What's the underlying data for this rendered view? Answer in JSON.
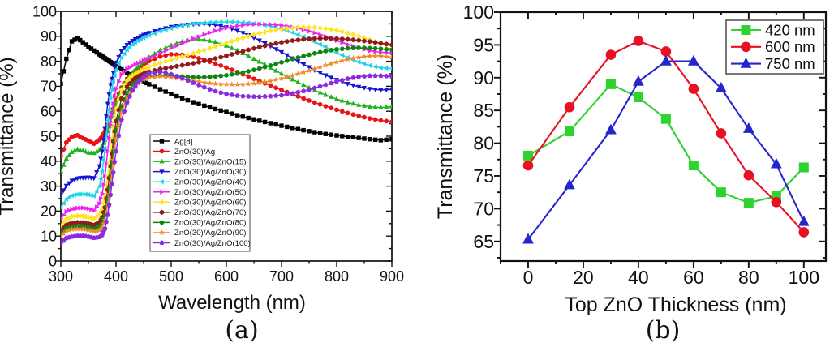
{
  "figure": {
    "background": "#ffffff",
    "text_color": "#111111"
  },
  "chart_data": [
    {
      "id": "a",
      "type": "line",
      "title": "",
      "caption": "(a)",
      "xlabel": "Wavelength (nm)",
      "ylabel": "Transmittance (%)",
      "xlim": [
        300,
        900
      ],
      "ylim": [
        0,
        100
      ],
      "xticks": {
        "major": 100,
        "minor": 50
      },
      "yticks": {
        "major": 10,
        "minor": 5
      },
      "grid": false,
      "legend_position": "inside-lower-center-left",
      "x": [
        300,
        310,
        320,
        330,
        340,
        350,
        360,
        370,
        375,
        380,
        385,
        390,
        395,
        400,
        410,
        420,
        430,
        440,
        450,
        460,
        480,
        500,
        520,
        540,
        560,
        580,
        600,
        620,
        640,
        660,
        680,
        700,
        720,
        740,
        760,
        780,
        800,
        820,
        840,
        860,
        880,
        900
      ],
      "series": [
        {
          "name": "Ag[8]",
          "color": "#000000",
          "marker": "square",
          "values": [
            71,
            81,
            88,
            89.3,
            87.6,
            85.8,
            84.3,
            82.8,
            82,
            81.2,
            80.5,
            79.7,
            79,
            78.2,
            76.8,
            75.4,
            74.2,
            73,
            71.8,
            70.8,
            68.8,
            66.9,
            65.2,
            63.6,
            62.2,
            60.9,
            59.7,
            58.4,
            57.3,
            56.2,
            55.2,
            54.2,
            53.3,
            52.4,
            51.6,
            50.9,
            50.3,
            49.8,
            49.3,
            48.8,
            48.4,
            48.8
          ]
        },
        {
          "name": "ZnO(30)/Ag",
          "color": "#e81313",
          "marker": "circle",
          "values": [
            42,
            47.5,
            49.8,
            50.4,
            49.2,
            48.2,
            47,
            48.5,
            50,
            52,
            54.5,
            57.5,
            61,
            64.5,
            69.5,
            73,
            75.3,
            77.2,
            78.8,
            80.1,
            81.9,
            82.8,
            82.6,
            81.8,
            80.6,
            79.1,
            77.5,
            75.7,
            73.9,
            72.1,
            70.3,
            68.5,
            66.8,
            65.1,
            63.5,
            62,
            60.6,
            59.3,
            58.1,
            57.1,
            56.3,
            55.8
          ]
        },
        {
          "name": "ZnO(30)/Ag/ZnO(15)",
          "color": "#1db41d",
          "marker": "triangle-up",
          "values": [
            36,
            41,
            43.6,
            44.7,
            44.2,
            43.4,
            43.2,
            44.5,
            46,
            48.5,
            52,
            56,
            60,
            63.5,
            69,
            72.8,
            75.5,
            77.8,
            79.8,
            81.6,
            84.4,
            86.4,
            87.9,
            88.8,
            88.6,
            87.7,
            86.2,
            84.3,
            82.1,
            79.8,
            77.4,
            75,
            72.7,
            70.5,
            68.4,
            66.5,
            64.9,
            63.5,
            62.5,
            61.8,
            61.5,
            61.9
          ]
        },
        {
          "name": "ZnO(30)/Ag/ZnO(30)",
          "color": "#1515d2",
          "marker": "triangle-down",
          "values": [
            26.5,
            30.2,
            32.2,
            33.1,
            33.4,
            33.5,
            33.2,
            38,
            44,
            53,
            63,
            70.5,
            75.5,
            79.5,
            84,
            86.6,
            88.2,
            89.5,
            90.6,
            91.4,
            92.8,
            93.8,
            94.5,
            94.9,
            95,
            94.6,
            93.7,
            92.3,
            90.5,
            88.4,
            86.1,
            83.7,
            81.2,
            78.8,
            76.5,
            74.4,
            72.6,
            71,
            69.8,
            69,
            68.5,
            68.7
          ]
        },
        {
          "name": "ZnO(30)/Ag/ZnO(40)",
          "color": "#21d4e8",
          "marker": "triangle-left",
          "values": [
            21.5,
            24.8,
            26.2,
            26.7,
            26.8,
            26.6,
            26.1,
            30,
            36,
            45,
            56,
            65.5,
            72,
            76.5,
            81.5,
            84.6,
            86.7,
            88.2,
            89.4,
            90.4,
            92,
            93.2,
            94.2,
            95,
            95.4,
            95.7,
            95.8,
            95.7,
            95.4,
            94.9,
            94.1,
            93,
            91.5,
            89.8,
            87.8,
            85.7,
            83.5,
            81.5,
            79.7,
            78.3,
            77.4,
            77.1
          ]
        },
        {
          "name": "ZnO(30)/Ag/ZnO(50)",
          "color": "#ee22ee",
          "marker": "triangle-right",
          "values": [
            17,
            19.8,
            20.8,
            21.2,
            21.3,
            21,
            20.3,
            23,
            27,
            34,
            44,
            54.5,
            63,
            69,
            74.8,
            77,
            78.2,
            79.3,
            80.3,
            81.3,
            83.3,
            85.3,
            87.2,
            89,
            90.7,
            92.2,
            93.4,
            94.2,
            94.7,
            94.9,
            94.8,
            94.4,
            93.7,
            92.7,
            91.4,
            89.9,
            88.3,
            86.7,
            85.3,
            84.2,
            83.6,
            83.4
          ]
        },
        {
          "name": "ZnO(30)/Ag/ZnO(60)",
          "color": "#ffe51e",
          "marker": "diamond",
          "values": [
            14.2,
            16.8,
            17.8,
            18.1,
            18,
            17.6,
            17,
            18.5,
            21,
            26,
            34,
            44,
            53.5,
            61,
            68.5,
            72.3,
            74.3,
            75.7,
            76.8,
            77.8,
            79.3,
            80.6,
            81.9,
            83.2,
            84.5,
            85.9,
            87.3,
            88.7,
            90,
            91.2,
            92.2,
            92.9,
            93.4,
            93.6,
            93.5,
            93.1,
            92.4,
            91.3,
            90,
            88.6,
            87.2,
            86.2
          ]
        },
        {
          "name": "ZnO(30)/Ag/ZnO(70)",
          "color": "#8e1c1c",
          "marker": "hexagon",
          "values": [
            12.2,
            14.4,
            15.2,
            15.5,
            15.4,
            15,
            14.4,
            15.5,
            17.5,
            21.5,
            28.5,
            38,
            48,
            56,
            65,
            69.8,
            72.4,
            74,
            75,
            75.8,
            76.9,
            77.6,
            78.4,
            79.2,
            80.1,
            81.1,
            82.2,
            83.4,
            84.6,
            85.7,
            86.7,
            87.6,
            88.3,
            88.8,
            89.1,
            89.2,
            89.1,
            88.8,
            88.4,
            87.9,
            87.2,
            86.6
          ]
        },
        {
          "name": "ZnO(30)/Ag/ZnO(80)",
          "color": "#108410",
          "marker": "circle",
          "values": [
            11,
            13,
            13.7,
            13.9,
            13.8,
            13.4,
            12.8,
            13.5,
            15,
            18.5,
            25,
            34,
            44,
            52.5,
            62,
            67.3,
            70.5,
            72.3,
            73.3,
            73.9,
            74.3,
            74.2,
            73.9,
            73.6,
            73.6,
            73.9,
            74.4,
            75.1,
            76,
            77.1,
            78.3,
            79.6,
            80.9,
            82.1,
            83.2,
            84.1,
            84.8,
            85.2,
            85.4,
            85.3,
            85,
            84.6
          ]
        },
        {
          "name": "ZnO(30)/Ag/ZnO(90)",
          "color": "#ef8c28",
          "marker": "star",
          "values": [
            10,
            12,
            12.7,
            12.9,
            12.8,
            12.4,
            11.8,
            12.3,
            13.5,
            16.5,
            22.5,
            31,
            40.5,
            49,
            59.5,
            65.3,
            69,
            71.3,
            72.7,
            73.5,
            73.9,
            73.5,
            72.9,
            72.2,
            71.5,
            71,
            70.8,
            70.7,
            70.9,
            71.4,
            72.1,
            73.1,
            74.3,
            75.6,
            77,
            78.4,
            79.7,
            80.8,
            81.6,
            82.1,
            82.1,
            81.6
          ]
        },
        {
          "name": "ZnO(30)/Ag/ZnO(100)",
          "color": "#8a2be2",
          "marker": "pentagon",
          "values": [
            7.2,
            9.2,
            9.8,
            10.1,
            10.1,
            9.8,
            9.3,
            9.6,
            10.5,
            13,
            18.5,
            26.5,
            35.5,
            44,
            56.5,
            63.5,
            68.3,
            71.5,
            73.7,
            75.1,
            75.8,
            74.8,
            73.2,
            71.4,
            69.6,
            68,
            66.9,
            66.2,
            65.9,
            65.8,
            66,
            66.4,
            67.1,
            68.1,
            69.3,
            70.6,
            71.9,
            73,
            73.8,
            74.2,
            74.2,
            73.9
          ]
        }
      ]
    },
    {
      "id": "b",
      "type": "line",
      "title": "",
      "caption": "(b)",
      "xlabel": "Top ZnO Thickness (nm)",
      "ylabel": "Transmittance (%)",
      "xlim": [
        -10,
        108
      ],
      "ylim": [
        62,
        100
      ],
      "xticks": {
        "major": 20,
        "minor": 10
      },
      "yticks": {
        "major": 5,
        "minor": 2.5
      },
      "grid": false,
      "legend_position": "inside-upper-right",
      "x": [
        0,
        15,
        30,
        40,
        50,
        60,
        70,
        80,
        90,
        100
      ],
      "series": [
        {
          "name": "420 nm",
          "color": "#2ed32e",
          "marker": "square",
          "values": [
            78.1,
            81.8,
            89.0,
            87.0,
            83.7,
            76.6,
            72.5,
            70.9,
            71.9,
            76.3
          ]
        },
        {
          "name": "600 nm",
          "color": "#e81123",
          "marker": "circle",
          "values": [
            76.6,
            85.5,
            93.5,
            95.6,
            94.0,
            88.3,
            81.5,
            75.1,
            71.0,
            66.4
          ]
        },
        {
          "name": "750 nm",
          "color": "#2525cd",
          "marker": "triangle-up",
          "values": [
            65.3,
            73.6,
            82.0,
            89.4,
            92.5,
            92.5,
            88.4,
            82.2,
            76.8,
            68.0
          ]
        }
      ]
    }
  ]
}
